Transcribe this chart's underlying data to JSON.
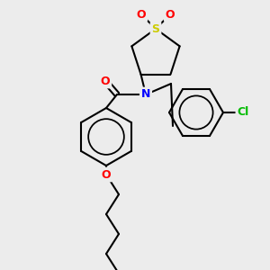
{
  "bg_color": "#ececec",
  "bond_color": "#000000",
  "atom_colors": {
    "O": "#ff0000",
    "N": "#0000ff",
    "S": "#cccc00",
    "Cl": "#00bb00",
    "C": "#000000"
  },
  "bond_width": 1.5,
  "figsize": [
    3.0,
    3.0
  ],
  "dpi": 100
}
